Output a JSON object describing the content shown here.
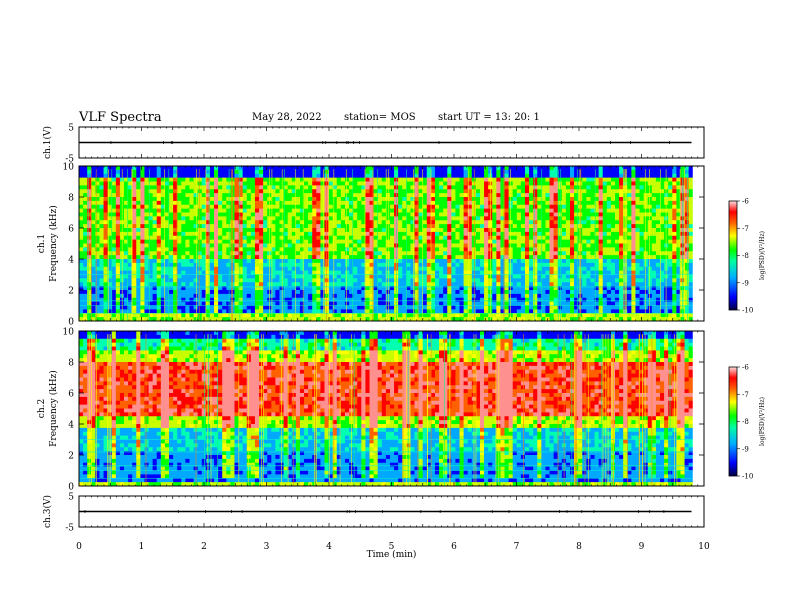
{
  "header": {
    "title": "VLF Spectra",
    "date": "May 28, 2022",
    "station": "station= MOS",
    "start": "start  UT =   13: 20: 1"
  },
  "colors": {
    "spectrum": [
      "#000000",
      "#0000c8",
      "#0000ff",
      "#00b4ff",
      "#00ffc0",
      "#00ff00",
      "#a0ff00",
      "#ffff00",
      "#ff8000",
      "#ff0000",
      "#ffd0d0"
    ],
    "axis": "#000000",
    "background": "#ffffff"
  },
  "chart_data": [
    {
      "type": "line",
      "name_label": "ch.1(V)",
      "ylabel": "ch.1(V)",
      "ylim": [
        -5,
        5
      ],
      "yticks": [
        "5",
        "-5"
      ],
      "xlim": [
        0,
        10
      ],
      "series": [
        {
          "x": [
            0,
            9.8
          ],
          "values": [
            0,
            0
          ]
        }
      ]
    },
    {
      "type": "heatmap",
      "ylabel": "ch.1\nFrequency (kHz)",
      "ylim": [
        0,
        10
      ],
      "yticks": [
        "0",
        "2",
        "4",
        "6",
        "8",
        "10"
      ],
      "xlim": [
        0,
        10
      ],
      "colorbar": {
        "label": "log(PSD)(V²/Hz)",
        "range": [
          -10,
          -6
        ],
        "ticks": [
          "-6",
          "-7",
          "-8",
          "-9",
          "-10"
        ]
      }
    },
    {
      "type": "heatmap",
      "ylabel": "ch.2\nFrequency (kHz)",
      "ylim": [
        0,
        10
      ],
      "yticks": [
        "0",
        "2",
        "4",
        "6",
        "8",
        "10"
      ],
      "xlim": [
        0,
        10
      ],
      "colorbar": {
        "label": "log(PSD)(V²/Hz)",
        "range": [
          -10,
          -6
        ],
        "ticks": [
          "-6",
          "-7",
          "-8",
          "-9",
          "-10"
        ]
      }
    },
    {
      "type": "line",
      "ylabel": "ch.3(V)",
      "ylim": [
        -5,
        5
      ],
      "yticks": [
        "5",
        "-5"
      ],
      "xlim": [
        0,
        10
      ],
      "series": [
        {
          "x": [
            0,
            9.8
          ],
          "values": [
            0,
            0
          ]
        }
      ]
    }
  ],
  "xaxis": {
    "label": "Time  (min)",
    "ticks": [
      "0",
      "1",
      "2",
      "3",
      "4",
      "5",
      "6",
      "7",
      "8",
      "9",
      "10"
    ]
  }
}
